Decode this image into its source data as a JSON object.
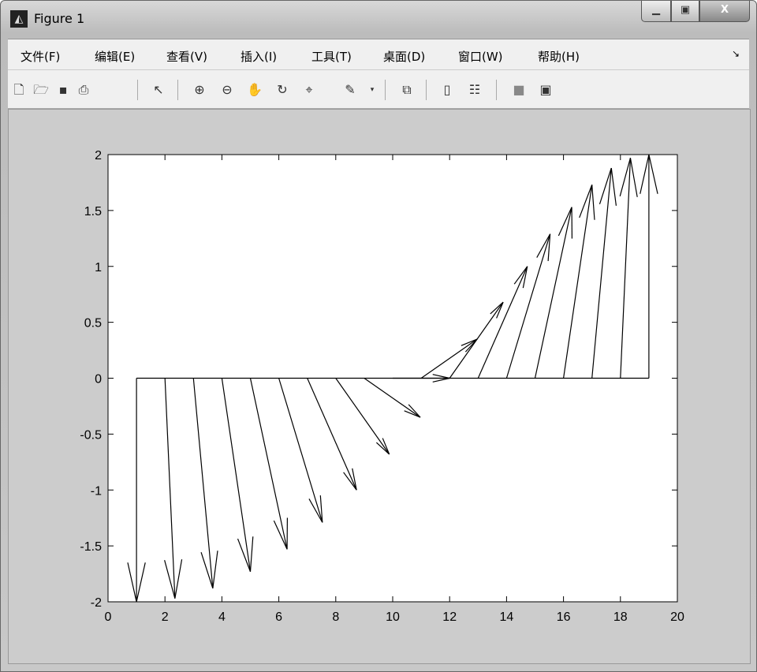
{
  "window": {
    "title": "Figure 1",
    "app_icon": "matlab-icon",
    "controls": [
      "minimize",
      "maximize",
      "close"
    ],
    "close_label": "X"
  },
  "menu": [
    "文件(F)",
    "编辑(E)",
    "查看(V)",
    "插入(I)",
    "工具(T)",
    "桌面(D)",
    "窗口(W)",
    "帮助(H)"
  ],
  "toolbar": [
    "new-figure-icon",
    "open-icon",
    "save-icon",
    "print-icon",
    "pointer-icon",
    "zoom-in-icon",
    "zoom-out-icon",
    "pan-hand-icon",
    "rotate-3d-icon",
    "data-cursor-icon",
    "brush-icon",
    "link-plot-icon",
    "colorbar-icon",
    "legend-icon",
    "hide-plot-tools-icon",
    "show-plot-tools-icon"
  ],
  "chart_data": {
    "type": "quiver",
    "xlim": [
      0,
      20
    ],
    "ylim": [
      -2,
      2
    ],
    "xticks": [
      "0",
      "2",
      "4",
      "6",
      "8",
      "10",
      "12",
      "14",
      "16",
      "18",
      "20"
    ],
    "yticks": [
      "2",
      "1.5",
      "1",
      "0.5",
      "0",
      "-0.5",
      "-1",
      "-1.5",
      "-2"
    ],
    "grid": false,
    "line": {
      "x": [
        1,
        19
      ],
      "y": [
        0,
        0
      ]
    },
    "x": [
      1,
      2,
      3,
      4,
      5,
      6,
      7,
      8,
      9,
      10,
      11,
      12,
      13,
      14,
      15,
      16,
      17,
      18,
      19
    ],
    "y": [
      0,
      0,
      0,
      0,
      0,
      0,
      0,
      0,
      0,
      0,
      0,
      0,
      0,
      0,
      0,
      0,
      0,
      0,
      0
    ],
    "u": [
      0,
      0.35,
      0.68,
      1,
      1.29,
      1.53,
      1.73,
      1.88,
      1.97,
      2,
      1.97,
      1.88,
      1.73,
      1.53,
      1.29,
      1,
      0.68,
      0.35,
      0
    ],
    "v": [
      -2,
      -1.97,
      -1.88,
      -1.73,
      -1.53,
      -1.29,
      -1,
      -0.68,
      -0.35,
      0,
      0.35,
      0.68,
      1,
      1.29,
      1.53,
      1.73,
      1.88,
      1.97,
      2
    ]
  }
}
